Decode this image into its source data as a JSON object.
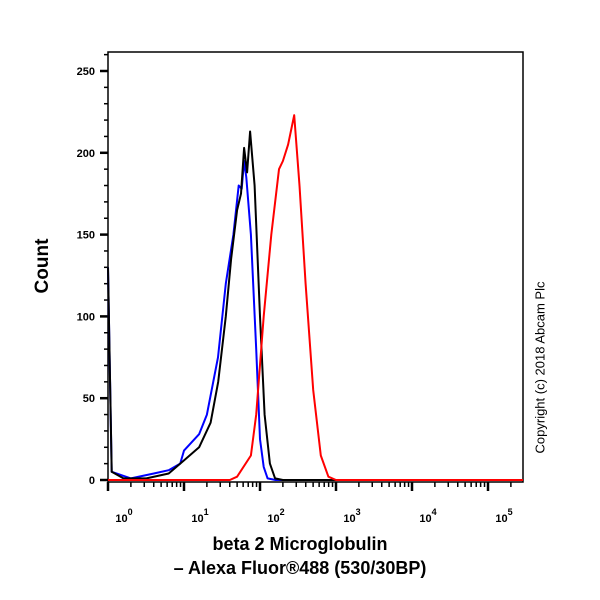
{
  "chart_data": {
    "type": "line",
    "title": "",
    "xlabel_line1": "beta 2 Microglobulin",
    "xlabel_line2": "– Alexa Fluor®488 (530/30BP)",
    "ylabel": "Count",
    "x_scale": "log",
    "xlim": [
      1,
      290000
    ],
    "ylim": [
      0,
      260
    ],
    "y_ticks": [
      "0",
      "50",
      "100",
      "150",
      "200",
      "250"
    ],
    "x_ticks": [
      {
        "base": "10",
        "exp": "0"
      },
      {
        "base": "10",
        "exp": "1"
      },
      {
        "base": "10",
        "exp": "2"
      },
      {
        "base": "10",
        "exp": "3"
      },
      {
        "base": "10",
        "exp": "4"
      },
      {
        "base": "10",
        "exp": "5"
      }
    ],
    "grid": false,
    "series": [
      {
        "color": "#0000ff",
        "points": [
          [
            1,
            130
          ],
          [
            1.12,
            5
          ],
          [
            2,
            1
          ],
          [
            4,
            4
          ],
          [
            6.3,
            6
          ],
          [
            8.9,
            10
          ],
          [
            10,
            18
          ],
          [
            15.8,
            28
          ],
          [
            20,
            40
          ],
          [
            28,
            75
          ],
          [
            35.5,
            120
          ],
          [
            44.7,
            150
          ],
          [
            52.5,
            180
          ],
          [
            57.5,
            178
          ],
          [
            61.7,
            195
          ],
          [
            66,
            185
          ],
          [
            75.9,
            150
          ],
          [
            89,
            80
          ],
          [
            100,
            25
          ],
          [
            112,
            8
          ],
          [
            126,
            1
          ],
          [
            160,
            0
          ],
          [
            290000,
            0
          ]
        ]
      },
      {
        "color": "#000000",
        "points": [
          [
            1,
            130
          ],
          [
            1.12,
            5
          ],
          [
            1.6,
            1
          ],
          [
            3.2,
            1
          ],
          [
            6.3,
            4
          ],
          [
            10,
            12
          ],
          [
            15.8,
            20
          ],
          [
            22.4,
            35
          ],
          [
            28.2,
            60
          ],
          [
            35.5,
            100
          ],
          [
            41.7,
            135
          ],
          [
            50,
            165
          ],
          [
            56.2,
            175
          ],
          [
            61.7,
            203
          ],
          [
            67.6,
            188
          ],
          [
            74.1,
            213
          ],
          [
            85,
            180
          ],
          [
            100,
            100
          ],
          [
            115,
            40
          ],
          [
            135,
            10
          ],
          [
            158,
            1
          ],
          [
            200,
            0
          ],
          [
            290000,
            0
          ]
        ]
      },
      {
        "color": "#ff0000",
        "points": [
          [
            1,
            0
          ],
          [
            40,
            0
          ],
          [
            50,
            2
          ],
          [
            75.9,
            15
          ],
          [
            89,
            40
          ],
          [
            112,
            100
          ],
          [
            141,
            150
          ],
          [
            178,
            190
          ],
          [
            200,
            195
          ],
          [
            234,
            205
          ],
          [
            282,
            223
          ],
          [
            331,
            180
          ],
          [
            398,
            120
          ],
          [
            501,
            55
          ],
          [
            631,
            15
          ],
          [
            794,
            2
          ],
          [
            1000,
            0
          ],
          [
            290000,
            0
          ]
        ]
      }
    ]
  },
  "copyright": "Copyright (c) 2018 Abcam Plc"
}
